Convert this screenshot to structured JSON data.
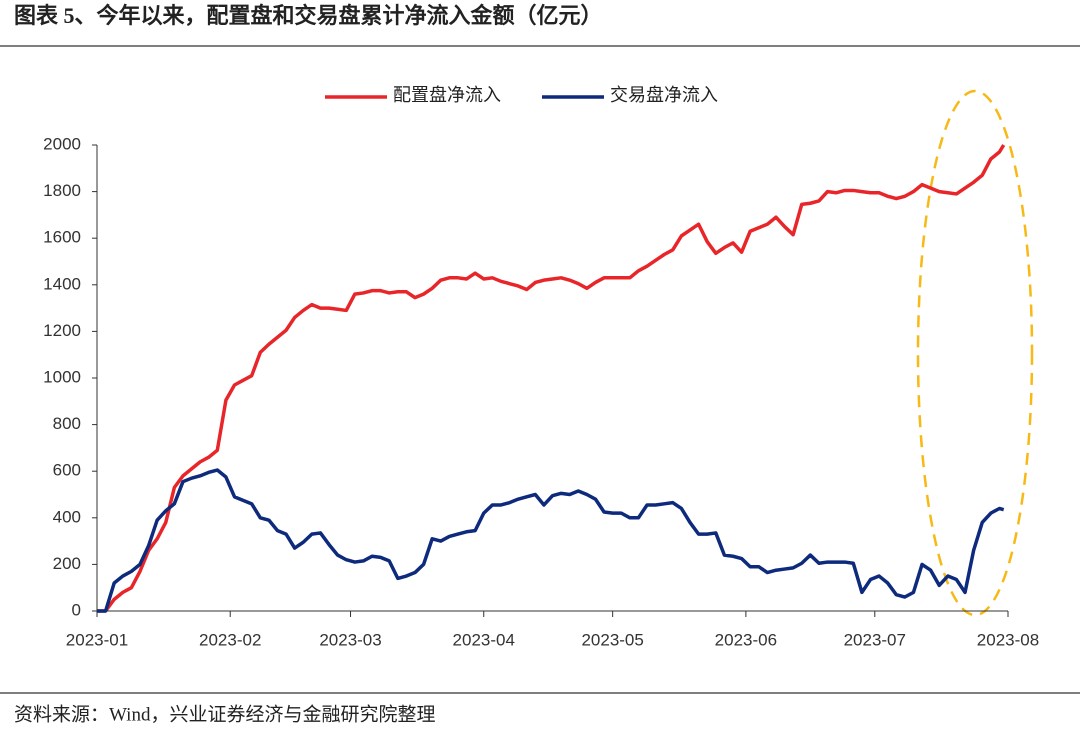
{
  "chart_data": {
    "type": "line",
    "title": "图表 5、今年以来，配置盘和交易盘累计净流入金额（亿元）",
    "source": "资料来源：Wind，兴业证券经济与金融研究院整理",
    "x": [
      0,
      2,
      4,
      6,
      8,
      10,
      12,
      14,
      16,
      18,
      20,
      22,
      24,
      26,
      28,
      30,
      32,
      34,
      36,
      38,
      40,
      42,
      44,
      46,
      48,
      50,
      52,
      54,
      56,
      58,
      60,
      62,
      64,
      66,
      68,
      70,
      72,
      74,
      76,
      78,
      80,
      82,
      84,
      86,
      88,
      90,
      92,
      94,
      96,
      98,
      100,
      102,
      104,
      106,
      108,
      110,
      112,
      114,
      116,
      118,
      120,
      122,
      124,
      126,
      128,
      130,
      132,
      134,
      136,
      138,
      140,
      142,
      144,
      146,
      148,
      150,
      152,
      154,
      156,
      158,
      160,
      162,
      164,
      166,
      168,
      170,
      172,
      174,
      176,
      178,
      180,
      182,
      184,
      186,
      188,
      190,
      192,
      194,
      196,
      198,
      200,
      202,
      204,
      206,
      208,
      210,
      211
    ],
    "xlim": [
      0,
      212
    ],
    "xticks": [
      {
        "value": 0,
        "label": "2023-01"
      },
      {
        "value": 31,
        "label": "2023-02"
      },
      {
        "value": 59,
        "label": "2023-03"
      },
      {
        "value": 90,
        "label": "2023-04"
      },
      {
        "value": 120,
        "label": "2023-05"
      },
      {
        "value": 151,
        "label": "2023-06"
      },
      {
        "value": 181,
        "label": "2023-07"
      },
      {
        "value": 212,
        "label": "2023-08"
      }
    ],
    "ylim": [
      0,
      2000
    ],
    "yticks": [
      0,
      200,
      400,
      600,
      800,
      1000,
      1200,
      1400,
      1600,
      1800,
      2000
    ],
    "legend": "top",
    "series": [
      {
        "name": "配置盘净流入",
        "color": "#e8262a",
        "values": [
          0,
          0,
          50,
          80,
          100,
          170,
          260,
          310,
          380,
          530,
          580,
          610,
          640,
          660,
          690,
          905,
          970,
          990,
          1010,
          1110,
          1145,
          1175,
          1205,
          1260,
          1290,
          1315,
          1300,
          1300,
          1295,
          1290,
          1360,
          1365,
          1375,
          1375,
          1365,
          1370,
          1370,
          1345,
          1360,
          1385,
          1420,
          1430,
          1430,
          1425,
          1450,
          1425,
          1430,
          1415,
          1405,
          1395,
          1380,
          1410,
          1420,
          1425,
          1430,
          1420,
          1405,
          1385,
          1410,
          1430,
          1430,
          1430,
          1430,
          1460,
          1480,
          1505,
          1530,
          1550,
          1610,
          1635,
          1660,
          1585,
          1535,
          1560,
          1580,
          1540,
          1630,
          1645,
          1660,
          1690,
          1650,
          1615,
          1745,
          1750,
          1760,
          1800,
          1795,
          1805,
          1805,
          1800,
          1795,
          1795,
          1780,
          1770,
          1780,
          1800,
          1830,
          1815,
          1800,
          1795,
          1790,
          1815,
          1840,
          1870,
          1940,
          1970,
          2000
        ]
      },
      {
        "name": "交易盘净流入",
        "color": "#0d2a7c",
        "values": [
          0,
          0,
          120,
          150,
          170,
          200,
          280,
          390,
          430,
          460,
          555,
          570,
          580,
          595,
          605,
          575,
          490,
          475,
          460,
          400,
          390,
          345,
          330,
          270,
          295,
          330,
          335,
          285,
          240,
          220,
          210,
          215,
          235,
          230,
          215,
          140,
          150,
          165,
          200,
          310,
          300,
          320,
          330,
          340,
          345,
          420,
          455,
          455,
          465,
          480,
          490,
          500,
          455,
          495,
          505,
          500,
          515,
          500,
          480,
          425,
          420,
          420,
          400,
          400,
          455,
          455,
          460,
          465,
          440,
          380,
          330,
          330,
          335,
          240,
          235,
          225,
          190,
          190,
          165,
          175,
          180,
          185,
          205,
          240,
          205,
          210,
          210,
          210,
          205,
          80,
          135,
          150,
          120,
          70,
          60,
          80,
          200,
          175,
          110,
          150,
          135,
          80,
          260,
          380,
          420,
          440,
          435
        ]
      }
    ]
  }
}
